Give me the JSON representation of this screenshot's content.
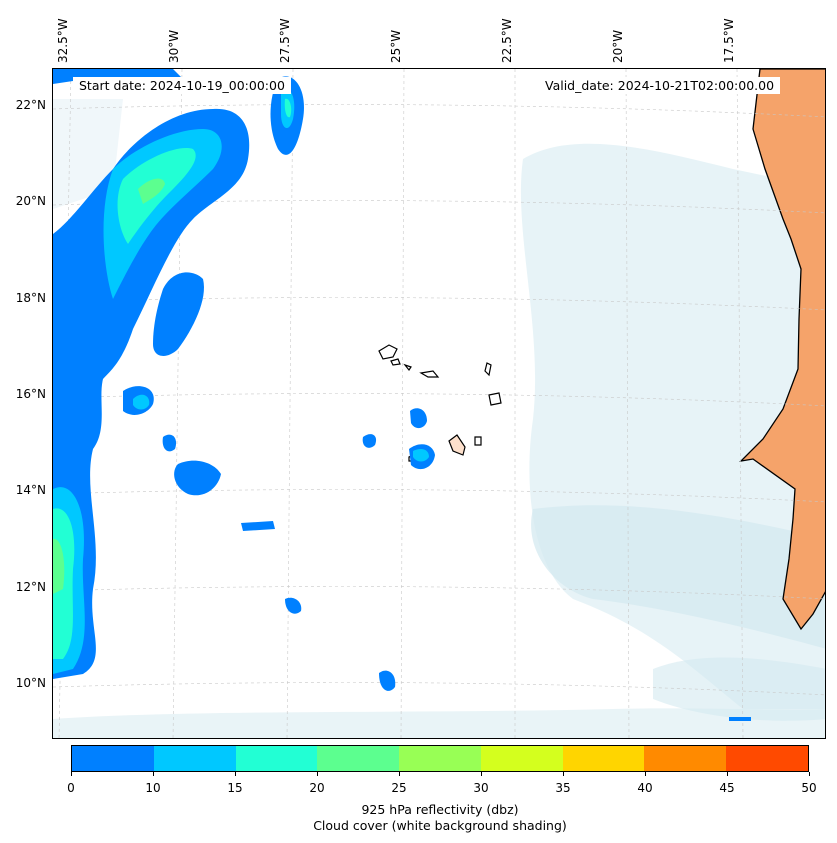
{
  "map": {
    "start_date": "Start date: 2024-10-19_00:00:00",
    "valid_date": "Valid_date: 2024-10-21T02:00:00.00",
    "lon_labels": [
      "32.5°W",
      "30°W",
      "27.5°W",
      "25°W",
      "22.5°W",
      "20°W",
      "17.5°W"
    ],
    "lat_labels": [
      "22°N",
      "20°N",
      "18°N",
      "16°N",
      "14°N",
      "12°N",
      "10°N"
    ],
    "colors": {
      "land": "#f5a36a",
      "ocean": "#ffffff",
      "cloud": "#d4e9f0",
      "coast": "#000000",
      "grid": "#c8c8c8"
    }
  },
  "colorbar": {
    "ticks": [
      "0",
      "10",
      "15",
      "20",
      "25",
      "30",
      "35",
      "40",
      "45",
      "50"
    ],
    "colors": [
      "#0080ff",
      "#00c8ff",
      "#22ffd4",
      "#5cff8f",
      "#98ff55",
      "#d4ff1e",
      "#ffd500",
      "#ff8a00",
      "#ff4a00"
    ],
    "label_line1": "925 hPa reflectivity (dbz)",
    "label_line2": "Cloud cover (white background shading)"
  }
}
